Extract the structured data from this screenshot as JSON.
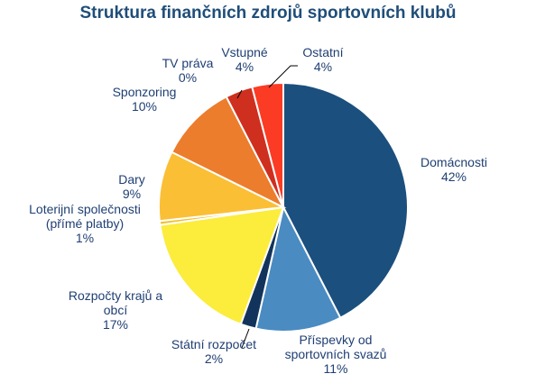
{
  "chart_data": {
    "type": "pie",
    "title": "Struktura finančních zdrojů sportovních klubů",
    "slices": [
      {
        "label": "Domácnosti",
        "label_lines": [
          "Domácnosti"
        ],
        "value_label": "42%",
        "value": 42,
        "color": "#1b4f7d"
      },
      {
        "label": "Příspevky od sportovních svazů",
        "label_lines": [
          "Příspevky od",
          "sportovních svazů"
        ],
        "value_label": "11%",
        "value": 11,
        "color": "#4a8bc2"
      },
      {
        "label": "Státní rozpočet",
        "label_lines": [
          "Státní rozpočet"
        ],
        "value_label": "2%",
        "value": 2,
        "color": "#12345c"
      },
      {
        "label": "Rozpočty krajů a obcí",
        "label_lines": [
          "Rozpočty krajů a",
          "obcí"
        ],
        "value_label": "17%",
        "value": 17,
        "color": "#fcec3c"
      },
      {
        "label": "Loterijní společnosti (přímé platby)",
        "label_lines": [
          "Loterijní společnosti",
          "(přímé platby)"
        ],
        "value_label": "1%",
        "value": 0.5,
        "color": "#f2c12e"
      },
      {
        "label": "Dary",
        "label_lines": [
          "Dary"
        ],
        "value_label": "9%",
        "value": 9,
        "color": "#fbbf35"
      },
      {
        "label": "Sponzoring",
        "label_lines": [
          "Sponzoring"
        ],
        "value_label": "10%",
        "value": 10,
        "color": "#ec7d2c"
      },
      {
        "label": "TV práva",
        "label_lines": [
          "TV práva"
        ],
        "value_label": "0%",
        "value": 0,
        "color": "#ec7d2c"
      },
      {
        "label": "Vstupné",
        "label_lines": [
          "Vstupné"
        ],
        "value_label": "4%",
        "value": 3.5,
        "color": "#cf2f1f"
      },
      {
        "label": "Ostatní",
        "label_lines": [
          "Ostatní"
        ],
        "value_label": "4%",
        "value": 4,
        "color": "#fb3b24"
      }
    ],
    "legend": "none"
  }
}
